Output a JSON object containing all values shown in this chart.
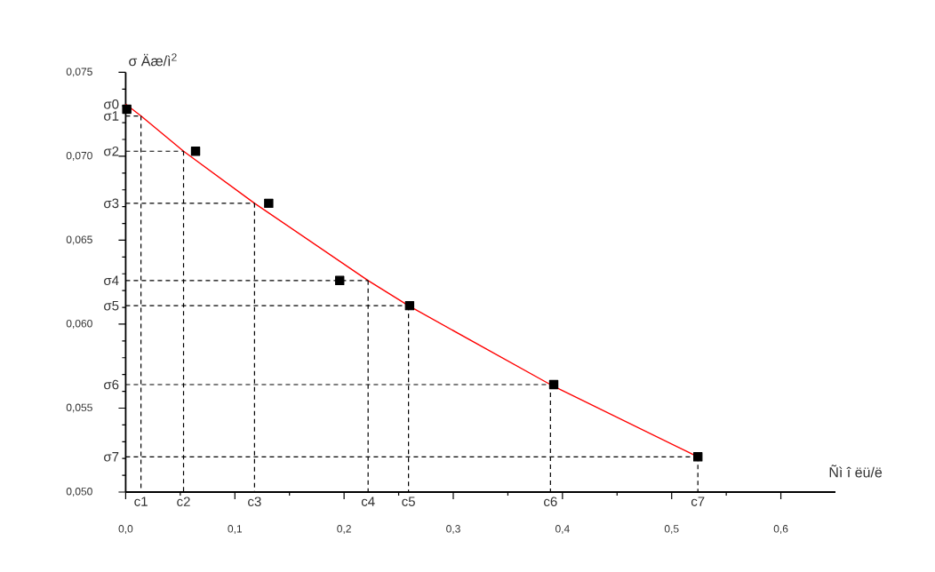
{
  "chart_data": {
    "type": "line",
    "xlabel": "Ñì î ëü/ë",
    "ylabel": "σ Äæ/ì$^{2}$",
    "xlim": [
      0,
      0.65
    ],
    "ylim": [
      0.05,
      0.075
    ],
    "xticks": [
      {
        "value": 0,
        "label": "0,0"
      },
      {
        "value": 0.1,
        "label": "0,1"
      },
      {
        "value": 0.2,
        "label": "0,2"
      },
      {
        "value": 0.3,
        "label": "0,3"
      },
      {
        "value": 0.4,
        "label": "0,4"
      },
      {
        "value": 0.5,
        "label": "0,5"
      },
      {
        "value": 0.6,
        "label": "0,6"
      }
    ],
    "yticks": [
      {
        "value": 0.05,
        "label": "0,050"
      },
      {
        "value": 0.055,
        "label": "0,055"
      },
      {
        "value": 0.06,
        "label": "0,060"
      },
      {
        "value": 0.065,
        "label": "0,065"
      },
      {
        "value": 0.07,
        "label": "0,070"
      },
      {
        "value": 0.075,
        "label": "0,075"
      }
    ],
    "series": [
      {
        "type": "line",
        "color": "#ff0000",
        "marker": "none",
        "line_style": "solid",
        "x": [
          0,
          0.014,
          0.053,
          0.118,
          0.222,
          0.259,
          0.389,
          0.524
        ],
        "values": [
          0.0731,
          0.0724,
          0.0703,
          0.0672,
          0.0626,
          0.0611,
          0.0564,
          0.0521
        ],
        "errors": [
          null,
          [
            0.05,
            0.0724
          ],
          [
            0.05,
            0.0703
          ],
          [
            0.05,
            0.0672
          ],
          [
            0.05,
            0.0626
          ],
          [
            0.05,
            0.0611
          ],
          [
            0.05,
            0.0564
          ],
          [
            0.05,
            0.0521
          ]
        ],
        "xerrors": [
          null,
          [
            0,
            0.014
          ],
          [
            0,
            0.053
          ],
          [
            0,
            0.118
          ],
          [
            0,
            0.222
          ],
          [
            0,
            0.259
          ],
          [
            0,
            0.389
          ],
          [
            0,
            0.524
          ]
        ]
      },
      {
        "type": "scatter",
        "color": "#000000",
        "marker": "square",
        "x": [
          0.001,
          0.064,
          0.131,
          0.196,
          0.26,
          0.392,
          0.524
        ],
        "values": [
          0.0728,
          0.0703,
          0.0672,
          0.0626,
          0.0611,
          0.0564,
          0.0521
        ]
      }
    ],
    "annotations": [
      {
        "text": "σ0",
        "x": 0,
        "y": 0.0731
      },
      {
        "text": "σ1",
        "x": 0,
        "y": 0.0724
      },
      {
        "text": "σ2",
        "x": 0,
        "y": 0.0703
      },
      {
        "text": "σ3",
        "x": 0,
        "y": 0.0672
      },
      {
        "text": "σ4",
        "x": 0,
        "y": 0.0626
      },
      {
        "text": "σ5",
        "x": 0,
        "y": 0.0611
      },
      {
        "text": "σ6",
        "x": 0,
        "y": 0.0564
      },
      {
        "text": "σ7",
        "x": 0,
        "y": 0.0521
      },
      {
        "text": "c1",
        "x": 0.014,
        "y": 0.05
      },
      {
        "text": "c2",
        "x": 0.053,
        "y": 0.05
      },
      {
        "text": "c3",
        "x": 0.118,
        "y": 0.05
      },
      {
        "text": "c4",
        "x": 0.222,
        "y": 0.05
      },
      {
        "text": "c5",
        "x": 0.259,
        "y": 0.05
      },
      {
        "text": "c6",
        "x": 0.389,
        "y": 0.05
      },
      {
        "text": "c7",
        "x": 0.524,
        "y": 0.05
      }
    ]
  }
}
